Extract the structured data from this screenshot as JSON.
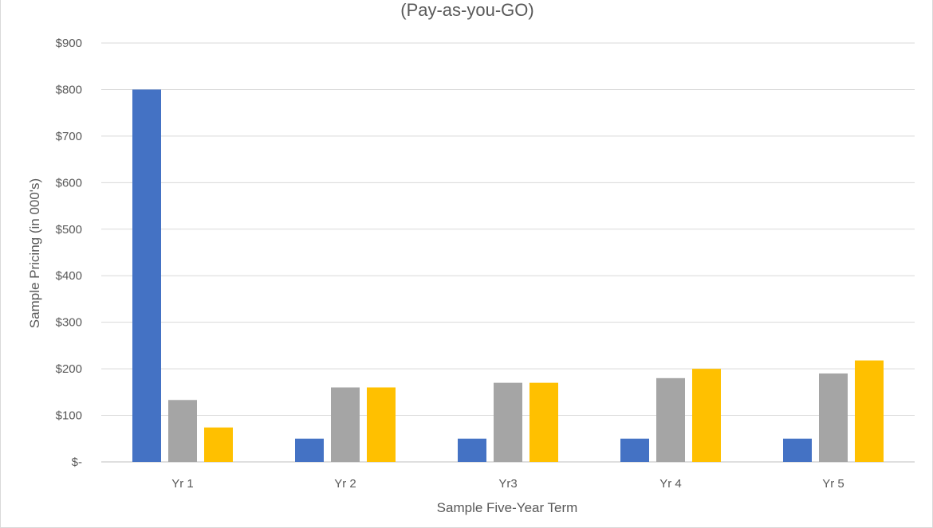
{
  "chart_data": {
    "type": "bar",
    "title": "(Pay-as-you-GO)",
    "xlabel": "Sample Five-Year Term",
    "ylabel": "Sample Pricing  (in 000's)",
    "categories": [
      "Yr 1",
      "Yr 2",
      "Yr3",
      "Yr 4",
      "Yr 5"
    ],
    "ylim": [
      0,
      900
    ],
    "yticks": [
      0,
      100,
      200,
      300,
      400,
      500,
      600,
      700,
      800,
      900
    ],
    "ytick_labels": [
      "$-",
      "$100",
      "$200",
      "$300",
      "$400",
      "$500",
      "$600",
      "$700",
      "$800",
      "$900"
    ],
    "grid": true,
    "legend": "none",
    "series": [
      {
        "values": [
          800,
          50,
          50,
          50,
          50
        ],
        "color": "#4472c4"
      },
      {
        "values": [
          133,
          160,
          170,
          180,
          190
        ],
        "color": "#a5a5a5"
      },
      {
        "values": [
          74,
          160,
          170,
          200,
          218
        ],
        "color": "#ffc000"
      }
    ]
  }
}
